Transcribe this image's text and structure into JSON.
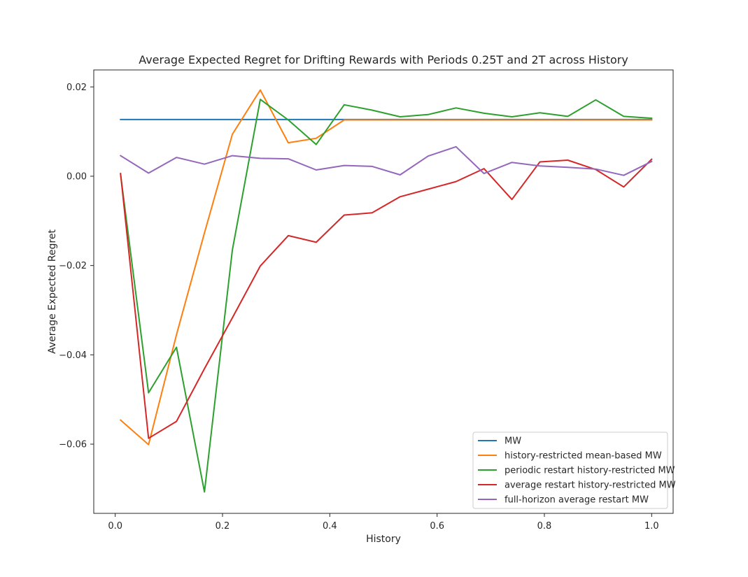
{
  "chart_data": {
    "type": "line",
    "title": "Average Expected Regret for Drifting Rewards with Periods 0.25T and 2T across History",
    "xlabel": "History",
    "ylabel": "Average Expected Regret",
    "xlim": [
      -0.04,
      1.04
    ],
    "ylim": [
      -0.0755,
      0.0238
    ],
    "xticks": [
      0.0,
      0.2,
      0.4,
      0.6,
      0.8,
      1.0
    ],
    "xtick_labels": [
      "0.0",
      "0.2",
      "0.4",
      "0.6",
      "0.8",
      "1.0"
    ],
    "yticks": [
      -0.06,
      -0.04,
      -0.02,
      0.0,
      0.02
    ],
    "ytick_labels": [
      "−0.06",
      "−0.04",
      "−0.02",
      "0.00",
      "0.02"
    ],
    "grid": false,
    "legend_position": "lower-right",
    "x": [
      0.01,
      0.0621,
      0.1142,
      0.1663,
      0.2184,
      0.2705,
      0.3226,
      0.3747,
      0.4268,
      0.4789,
      0.5311,
      0.5832,
      0.6353,
      0.6874,
      0.7395,
      0.7916,
      0.8437,
      0.8958,
      0.9479,
      1.0
    ],
    "series": [
      {
        "name": "MW",
        "color": "#1f77b4",
        "values": [
          0.0127,
          0.0127,
          0.0127,
          0.0127,
          0.0127,
          0.0127,
          0.0127,
          0.0127,
          0.0127,
          0.0127,
          0.0127,
          0.0127,
          0.0127,
          0.0127,
          0.0127,
          0.0127,
          0.0127,
          0.0127,
          0.0127,
          0.0127
        ]
      },
      {
        "name": "history-restricted mean-based MW",
        "color": "#ff7f0e",
        "values": [
          -0.0546,
          -0.0601,
          -0.0355,
          -0.0127,
          0.0094,
          0.0193,
          0.0075,
          0.0085,
          0.0126,
          0.0126,
          0.0126,
          0.0126,
          0.0126,
          0.0126,
          0.0126,
          0.0126,
          0.0126,
          0.0126,
          0.0126,
          0.0126
        ]
      },
      {
        "name": "periodic restart history-restricted MW",
        "color": "#2ca02c",
        "values": [
          0.0004,
          -0.0485,
          -0.0383,
          -0.0707,
          -0.0165,
          0.0172,
          0.0126,
          0.0071,
          0.016,
          0.0148,
          0.0133,
          0.0138,
          0.0153,
          0.0141,
          0.0133,
          0.0142,
          0.0134,
          0.0171,
          0.0134,
          0.013
        ]
      },
      {
        "name": "average restart history-restricted MW",
        "color": "#d62728",
        "values": [
          0.0006,
          -0.0587,
          -0.0549,
          -0.0431,
          -0.0317,
          -0.0201,
          -0.0133,
          -0.0148,
          -0.0087,
          -0.0082,
          -0.0046,
          -0.0029,
          -0.0012,
          0.0017,
          -0.0052,
          0.0032,
          0.0036,
          0.0015,
          -0.0024,
          0.0038
        ]
      },
      {
        "name": "full-horizon average restart MW",
        "color": "#9467bd",
        "values": [
          0.0046,
          0.0007,
          0.0042,
          0.0027,
          0.0046,
          0.004,
          0.0039,
          0.0014,
          0.0024,
          0.0022,
          0.0003,
          0.0045,
          0.0066,
          0.0006,
          0.0031,
          0.0023,
          0.002,
          0.0016,
          0.0002,
          0.0033
        ]
      }
    ]
  }
}
